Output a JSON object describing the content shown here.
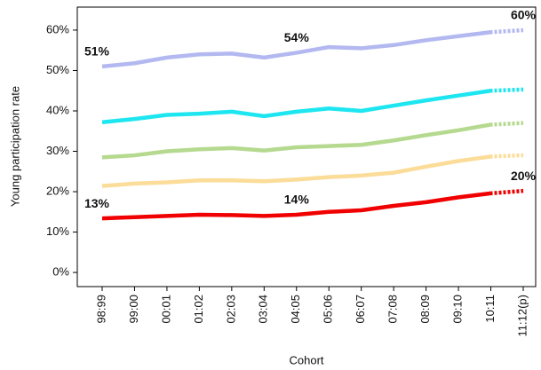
{
  "chart_data": {
    "type": "line",
    "y_label": "Young participation rate",
    "x_label": "Cohort",
    "categories": [
      "98:99",
      "99:00",
      "00:01",
      "01:02",
      "02:03",
      "03:04",
      "04:05",
      "05:06",
      "06:07",
      "07:08",
      "08:09",
      "09:10",
      "10:11",
      "11:12(p)"
    ],
    "last_point_projected": true,
    "series": [
      {
        "color": "#b3b9f0",
        "values": [
          51,
          51.8,
          53.2,
          54,
          54.2,
          53.2,
          54.4,
          55.8,
          55.5,
          56.3,
          57.5,
          58.5,
          59.5,
          60
        ],
        "value_labels": [
          "51%",
          null,
          null,
          null,
          null,
          null,
          "54%",
          null,
          null,
          null,
          null,
          null,
          null,
          "60%"
        ]
      },
      {
        "color": "#1ee6f0",
        "values": [
          37.2,
          38,
          39,
          39.3,
          39.8,
          38.7,
          39.8,
          40.6,
          40,
          41.3,
          42.6,
          43.8,
          45,
          45.3
        ]
      },
      {
        "color": "#b5d98f",
        "values": [
          28.5,
          29,
          30,
          30.5,
          30.8,
          30.2,
          31,
          31.3,
          31.6,
          32.7,
          34,
          35.2,
          36.6,
          37
        ]
      },
      {
        "color": "#fbdc98",
        "values": [
          21.4,
          22,
          22.3,
          22.8,
          22.8,
          22.6,
          23,
          23.6,
          24,
          24.7,
          26.2,
          27.6,
          28.7,
          29
        ]
      },
      {
        "color": "#f00000",
        "values": [
          13.4,
          13.7,
          14,
          14.3,
          14.2,
          14,
          14.3,
          15,
          15.4,
          16.5,
          17.4,
          18.6,
          19.6,
          20.2
        ],
        "value_labels": [
          "13%",
          null,
          null,
          null,
          null,
          null,
          "14%",
          null,
          null,
          null,
          null,
          null,
          null,
          "20%"
        ]
      }
    ],
    "ylim": [
      -3.5,
      65.7
    ],
    "yticks": [
      {
        "value": 0,
        "label": "0%"
      },
      {
        "value": 10,
        "label": "10%"
      },
      {
        "value": 20,
        "label": "20%"
      },
      {
        "value": 30,
        "label": "30%"
      },
      {
        "value": 40,
        "label": "40%"
      },
      {
        "value": 50,
        "label": "50%"
      },
      {
        "value": 60,
        "label": "60%"
      }
    ]
  }
}
